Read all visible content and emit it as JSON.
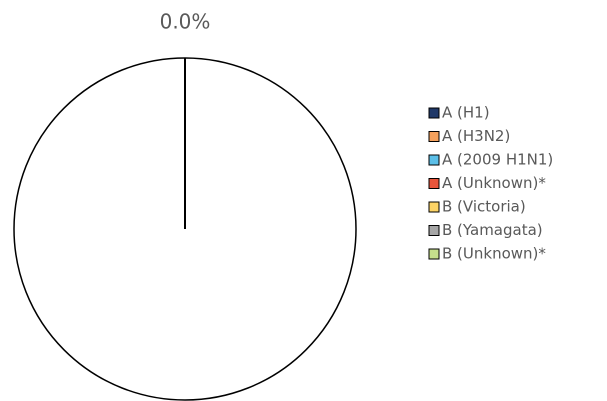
{
  "chart_data": {
    "type": "pie",
    "categories": [
      "A (H1)",
      "A (H3N2)",
      "A (2009 H1N1)",
      "A (Unknown)*",
      "B (Victoria)",
      "B (Yamagata)",
      "B (Unknown)*"
    ],
    "values": [
      0,
      0,
      0,
      0,
      0,
      0,
      0
    ],
    "value_labels": [
      "0.0%",
      null,
      null,
      null,
      null,
      null,
      null
    ],
    "colors": [
      "#1f3868",
      "#f4a15d",
      "#5bbfe8",
      "#e8553b",
      "#fdd466",
      "#a6a6a6",
      "#c6e08c"
    ],
    "legend": "right"
  }
}
